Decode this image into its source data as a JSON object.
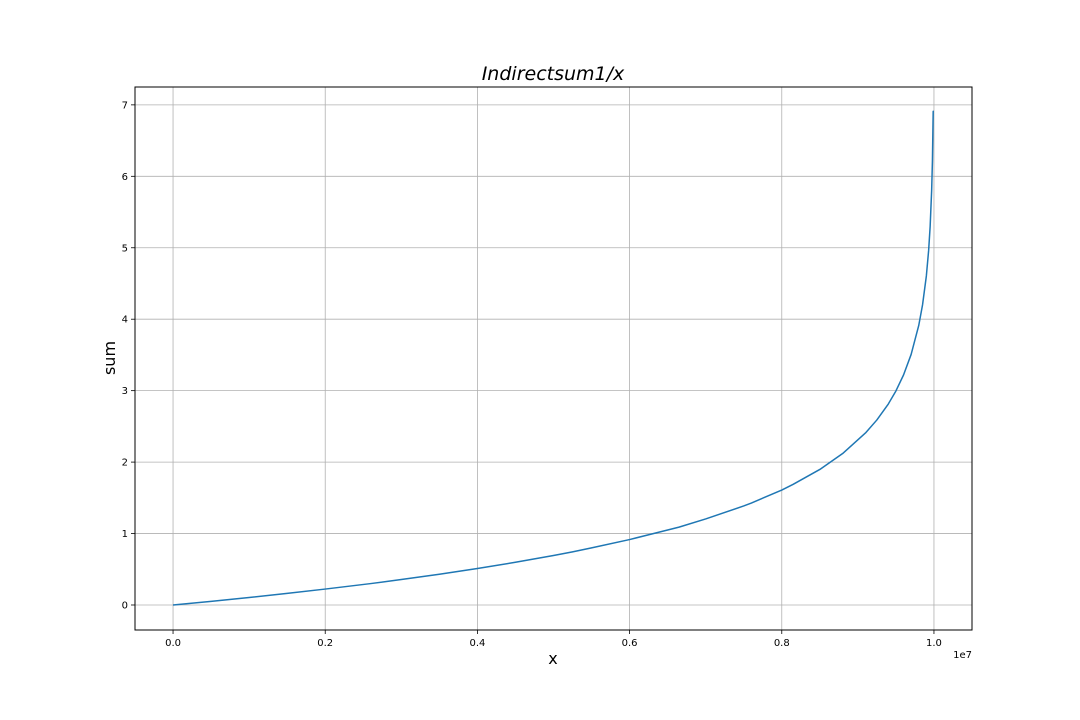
{
  "chart_data": {
    "type": "line",
    "title": "Indirectsum1/x",
    "xlabel": "x",
    "ylabel": "sum",
    "x_offset_label": "1e7",
    "xlim": [
      -0.05,
      1.05
    ],
    "ylim": [
      -0.35,
      7.25
    ],
    "grid": true,
    "line_color": "#1f77b4",
    "x_ticks": [
      0.0,
      0.2,
      0.4,
      0.6,
      0.8,
      1.0
    ],
    "x_tick_labels": [
      "0.0",
      "0.2",
      "0.4",
      "0.6",
      "0.8",
      "1.0"
    ],
    "y_ticks": [
      0,
      1,
      2,
      3,
      4,
      5,
      6,
      7
    ],
    "y_tick_labels": [
      "0",
      "1",
      "2",
      "3",
      "4",
      "5",
      "6",
      "7"
    ],
    "series": [
      {
        "x": [
          0.0,
          0.05,
          0.1,
          0.15,
          0.2,
          0.26,
          0.3,
          0.35,
          0.4,
          0.45,
          0.5,
          0.525,
          0.55,
          0.6,
          0.65,
          0.665,
          0.7,
          0.75,
          0.76,
          0.8,
          0.815,
          0.85,
          0.88,
          0.91,
          0.925,
          0.94,
          0.95,
          0.96,
          0.97,
          0.98,
          0.985,
          0.99,
          0.993,
          0.995,
          0.997,
          0.998,
          0.999,
          0.9995,
          0.9998,
          0.9999,
          0.99995,
          0.99999
        ],
        "y": [
          0.0,
          0.051,
          0.105,
          0.163,
          0.223,
          0.3,
          0.357,
          0.431,
          0.511,
          0.598,
          0.693,
          0.744,
          0.799,
          0.916,
          1.05,
          1.09,
          1.204,
          1.386,
          1.427,
          1.609,
          1.689,
          1.897,
          2.12,
          2.408,
          2.59,
          2.813,
          2.996,
          3.219,
          3.507,
          3.912,
          4.2,
          4.605,
          4.962,
          5.298,
          5.809,
          6.215,
          6.908,
          6.908,
          6.908,
          6.908,
          6.908,
          6.908
        ]
      }
    ]
  }
}
